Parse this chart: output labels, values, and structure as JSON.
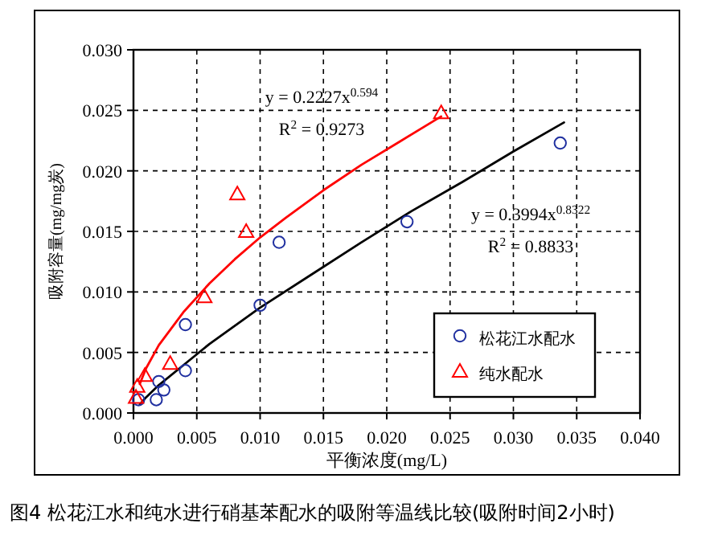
{
  "chart_data": {
    "type": "scatter",
    "title": "图4 松花江水和纯水进行硝基苯配水的吸附等温线比较(吸附时间2小时)",
    "xlabel": "平衡浓度(mg/L)",
    "ylabel": "吸附容量(mg/mg炭)",
    "xlim": [
      0,
      0.04
    ],
    "ylim": [
      0,
      0.03
    ],
    "xticks": [
      {
        "value": 0,
        "label": "0.000"
      },
      {
        "value": 0.005,
        "label": "0.005"
      },
      {
        "value": 0.01,
        "label": "0.010"
      },
      {
        "value": 0.015,
        "label": "0.015"
      },
      {
        "value": 0.02,
        "label": "0.020"
      },
      {
        "value": 0.025,
        "label": "0.025"
      },
      {
        "value": 0.03,
        "label": "0.030"
      },
      {
        "value": 0.035,
        "label": "0.035"
      },
      {
        "value": 0.04,
        "label": "0.040"
      }
    ],
    "yticks": [
      {
        "value": 0,
        "label": "0.000"
      },
      {
        "value": 0.005,
        "label": "0.005"
      },
      {
        "value": 0.01,
        "label": "0.010"
      },
      {
        "value": 0.015,
        "label": "0.015"
      },
      {
        "value": 0.02,
        "label": "0.020"
      },
      {
        "value": 0.025,
        "label": "0.025"
      },
      {
        "value": 0.03,
        "label": "0.030"
      }
    ],
    "grid": true,
    "legend": "bottom right",
    "series": [
      {
        "name": "松花江水配水",
        "marker": "circle",
        "color": "#2030a0",
        "x": [
          0.0337,
          0.0216,
          0.0115,
          0.01,
          0.0041,
          0.0041,
          0.002,
          0.0024,
          0.0018,
          0.0004
        ],
        "values": [
          0.0223,
          0.0158,
          0.0141,
          0.0089,
          0.0073,
          0.0035,
          0.0026,
          0.0019,
          0.0011,
          0.0011
        ]
      },
      {
        "name": "纯水配水",
        "marker": "triangle",
        "color": "#ff0000",
        "x": [
          0.0243,
          0.0082,
          0.0089,
          0.0056,
          0.0029,
          0.0009,
          0.0003,
          0.0002
        ],
        "values": [
          0.0248,
          0.0181,
          0.015,
          0.0096,
          0.0041,
          0.0031,
          0.0022,
          0.0013
        ]
      },
      {
        "type": "line",
        "marker": "none",
        "color": "#ff0000",
        "x": [
          0.0005,
          0.001,
          0.002,
          0.004,
          0.006,
          0.008,
          0.01,
          0.012,
          0.015,
          0.018,
          0.021,
          0.0243
        ],
        "values": [
          0.0024,
          0.0037,
          0.0056,
          0.0084,
          0.0107,
          0.0127,
          0.0145,
          0.0161,
          0.0184,
          0.0205,
          0.0224,
          0.0245
        ]
      },
      {
        "type": "line",
        "marker": "none",
        "color": "#000000",
        "x": [
          0.0005,
          0.001,
          0.002,
          0.004,
          0.006,
          0.01,
          0.014,
          0.018,
          0.022,
          0.026,
          0.03,
          0.034
        ],
        "values": [
          0.0007,
          0.0013,
          0.0023,
          0.004,
          0.0057,
          0.0087,
          0.0114,
          0.0141,
          0.0167,
          0.0191,
          0.0216,
          0.024
        ]
      }
    ],
    "annotations": [
      "y = 0.2227x$^{0.594}$",
      "R$^{2}$ = 0.9273",
      "y = 0.3994x$^{0.8322}$",
      "R$^{2}$ = 0.8833"
    ]
  }
}
